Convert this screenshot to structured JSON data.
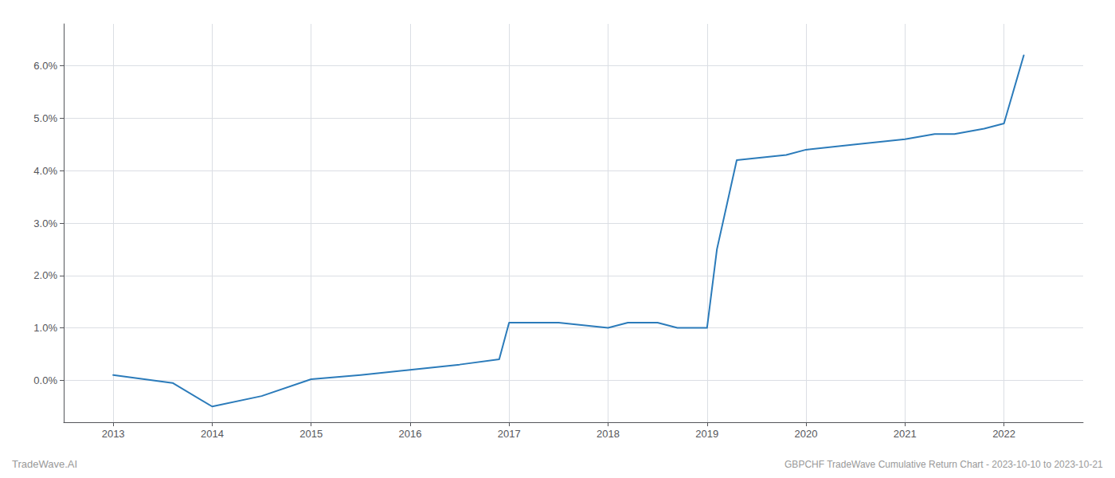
{
  "chart_data": {
    "type": "line",
    "title": "GBPCHF TradeWave Cumulative Return Chart - 2023-10-10 to 2023-10-21",
    "annotations": [
      "TradeWave.AI"
    ],
    "x": [
      2013.0,
      2013.6,
      2014.0,
      2014.5,
      2015.0,
      2015.5,
      2016.0,
      2016.5,
      2016.9,
      2017.0,
      2017.3,
      2017.5,
      2018.0,
      2018.2,
      2018.5,
      2018.7,
      2018.9,
      2019.0,
      2019.1,
      2019.3,
      2019.8,
      2020.0,
      2020.5,
      2021.0,
      2021.3,
      2021.5,
      2021.8,
      2022.0,
      2022.2
    ],
    "values": [
      0.001,
      -0.0005,
      -0.005,
      -0.003,
      0.0002,
      0.001,
      0.002,
      0.003,
      0.004,
      0.011,
      0.011,
      0.011,
      0.01,
      0.011,
      0.011,
      0.01,
      0.01,
      0.01,
      0.025,
      0.042,
      0.043,
      0.044,
      0.045,
      0.046,
      0.047,
      0.047,
      0.048,
      0.049,
      0.062
    ],
    "color": "#2b7bba",
    "xlim": [
      2012.5,
      2022.8
    ],
    "ylim": [
      -0.008,
      0.068
    ],
    "xticks": [
      2013,
      2014,
      2015,
      2016,
      2017,
      2018,
      2019,
      2020,
      2021,
      2022
    ],
    "yticks": [
      {
        "value": 0.0,
        "label": "0.0%"
      },
      {
        "value": 0.01,
        "label": "1.0%"
      },
      {
        "value": 0.02,
        "label": "2.0%"
      },
      {
        "value": 0.03,
        "label": "3.0%"
      },
      {
        "value": 0.04,
        "label": "4.0%"
      },
      {
        "value": 0.05,
        "label": "5.0%"
      },
      {
        "value": 0.06,
        "label": "6.0%"
      }
    ],
    "grid": true
  }
}
